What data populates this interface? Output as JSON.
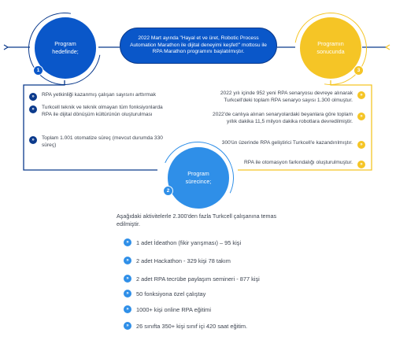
{
  "colors": {
    "navy": "#0b3a8c",
    "blue": "#0a57c9",
    "light_blue": "#2f8fe8",
    "yellow": "#f5c526",
    "text": "#3d4450"
  },
  "program_goal": {
    "label": "Program hedefinde;",
    "number": "1"
  },
  "program_process": {
    "label": "Program sürecince;",
    "number": "2"
  },
  "program_result": {
    "label": "Programın sonucunda",
    "number": "3"
  },
  "banner": {
    "text": "2022 Mart ayında \"Hayal et ve üret, Robotic Process Automation Marathon ile dijital deneyimi keşfet!\" mottosu ile RPA Marathon programını başlatılmıştır."
  },
  "goals": [
    "RPA yetkinliği kazanmış çalışan sayısını arttırmak",
    "Turkcell teknik ve teknik olmayan tüm fonksiyonlarda RPA ile dijital dönüşüm kültürünün oluşturulması",
    "Toplam 1.001 otomatize süreç (mevcut durumda 330 süreç)"
  ],
  "results": [
    "2022 yılı içinde 952 yeni RPA senaryosu devreye alınarak Turkcell'deki toplam RPA senaryo sayısı 1.300 olmuştur.",
    "2022'de canlıya alınan senaryolardaki beyanlara göre toplam yıllık dakika 11,5 milyon dakika robotlara devredilmiştir.",
    "300'ün üzerinde RPA geliştirici Turkcell'e kazandırılmıştır.",
    "RPA ile otomasyon farkındalığı oluşturulmuştur."
  ],
  "activities_intro": "Aşağıdaki aktivitelerle 2.300'den fazla Turkcell çalışanına temas edilmiştir.",
  "activities": [
    "1 adet İdeathon (fikir yarışması) – 95 kişi",
    "2 adet Hackathon - 329 kişi 78 takım",
    "2 adet RPA tecrübe paylaşım semineri - 877 kişi",
    "50 fonksiyona özel çalıştay",
    "1000+ kişi online RPA eğitimi",
    "26 sınıfta 350+ kişi sınıf içi 420 saat eğitim."
  ],
  "bullet_glyph": "»"
}
